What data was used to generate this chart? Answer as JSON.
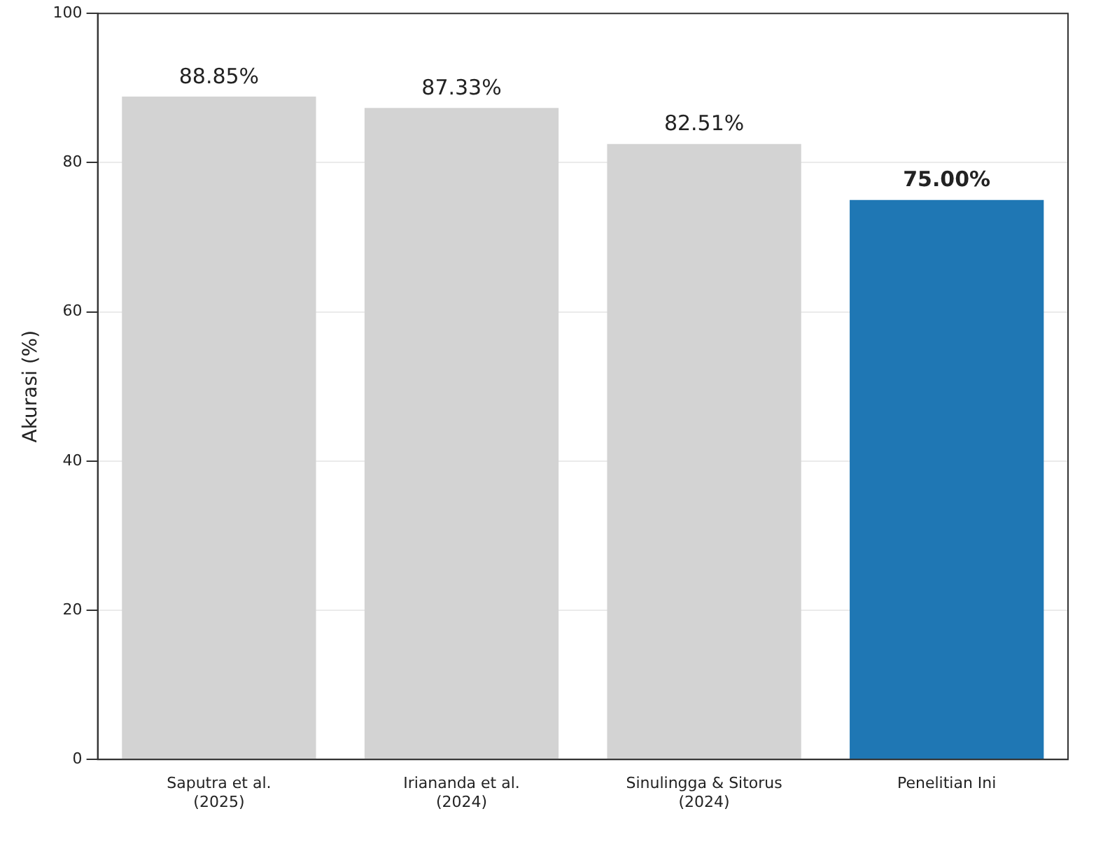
{
  "chart_data": {
    "type": "bar",
    "ylabel": "Akurasi (%)",
    "categories": [
      "Saputra et al.\n(2025)",
      "Iriananda et al.\n(2024)",
      "Sinulingga & Sitorus\n(2024)",
      "Penelitian Ini"
    ],
    "values": [
      88.85,
      87.33,
      82.51,
      75.0
    ],
    "colors": [
      "#d3d3d3",
      "#d3d3d3",
      "#d3d3d3",
      "#1f77b4"
    ],
    "value_labels": [
      "88.85%",
      "87.33%",
      "82.51%",
      "75.00%"
    ],
    "ylim": [
      0,
      100
    ],
    "yticks": [
      0,
      20,
      40,
      60,
      80,
      100
    ],
    "grid": "y",
    "legend": false
  }
}
